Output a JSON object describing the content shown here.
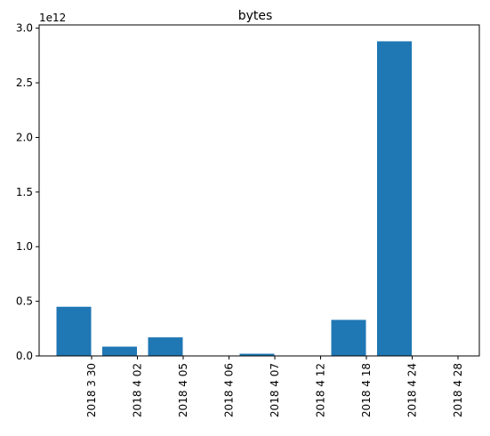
{
  "chart_data": {
    "type": "bar",
    "title": "bytes",
    "xlabel": "",
    "ylabel": "",
    "scale_label": "1e12",
    "categories": [
      "2018 3 30",
      "2018 4 02",
      "2018 4 05",
      "2018 4 06",
      "2018 4 07",
      "2018 4 12",
      "2018 4 18",
      "2018 4 24",
      "2018 4 28"
    ],
    "values": [
      450000000000,
      85000000000,
      170000000000,
      0,
      20000000000,
      0,
      330000000000,
      2880000000000,
      0
    ],
    "ylim": [
      0,
      3030000000000
    ],
    "yticks": [
      0,
      500000000000,
      1000000000000,
      1500000000000,
      2000000000000,
      2500000000000,
      3000000000000
    ],
    "ytick_labels": [
      "0.0",
      "0.5",
      "1.0",
      "1.5",
      "2.0",
      "2.5",
      "3.0"
    ],
    "bar_color": "#1f77b4",
    "grid": false,
    "legend": "none"
  }
}
